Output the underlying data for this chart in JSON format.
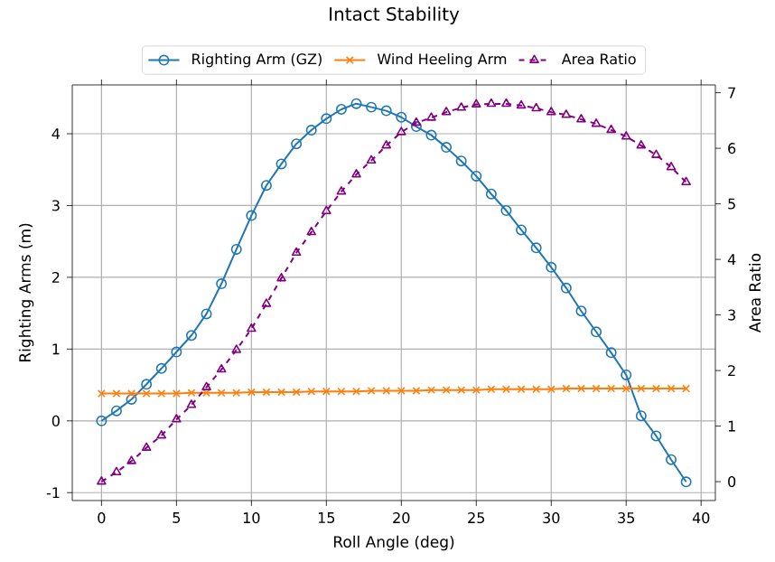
{
  "chart_data": {
    "type": "line",
    "title": "Intact Stability",
    "xlabel": "Roll Angle (deg)",
    "ylabel": "Righting Arms (m)",
    "y2label": "Area Ratio",
    "x": [
      0,
      1,
      2,
      3,
      4,
      5,
      6,
      7,
      8,
      9,
      10,
      11,
      12,
      13,
      14,
      15,
      16,
      17,
      18,
      19,
      20,
      21,
      22,
      23,
      24,
      25,
      26,
      27,
      28,
      29,
      30,
      31,
      32,
      33,
      34,
      35,
      36,
      37,
      38,
      39
    ],
    "series": [
      {
        "name": "Righting Arm (GZ)",
        "color": "#1f77b4",
        "marker": "circle",
        "line_style": "solid",
        "axis": "y",
        "values": [
          0,
          0.14,
          0.3,
          0.51,
          0.73,
          0.96,
          1.19,
          1.49,
          1.91,
          2.39,
          2.86,
          3.28,
          3.58,
          3.86,
          4.05,
          4.21,
          4.34,
          4.42,
          4.37,
          4.32,
          4.23,
          4.1,
          3.98,
          3.81,
          3.62,
          3.41,
          3.16,
          2.93,
          2.66,
          2.41,
          2.14,
          1.85,
          1.53,
          1.24,
          0.95,
          0.64,
          0.07,
          -0.21,
          -0.54,
          -0.85
        ]
      },
      {
        "name": "Wind Heeling Arm",
        "color": "#ff7f0e",
        "marker": "cross",
        "line_style": "solid",
        "axis": "y",
        "values": [
          0.38,
          0.38,
          0.38,
          0.38,
          0.38,
          0.38,
          0.39,
          0.39,
          0.39,
          0.39,
          0.4,
          0.4,
          0.4,
          0.4,
          0.41,
          0.41,
          0.41,
          0.41,
          0.42,
          0.42,
          0.42,
          0.42,
          0.43,
          0.43,
          0.43,
          0.43,
          0.44,
          0.44,
          0.44,
          0.44,
          0.44,
          0.45,
          0.45,
          0.45,
          0.45,
          0.45,
          0.45,
          0.45,
          0.45,
          0.45
        ]
      },
      {
        "name": "Area Ratio",
        "color": "#800080",
        "marker": "triangle",
        "line_style": "dashed",
        "axis": "y2",
        "values": [
          0,
          0.17,
          0.37,
          0.61,
          0.83,
          1.12,
          1.38,
          1.7,
          2.02,
          2.37,
          2.75,
          3.2,
          3.66,
          4.12,
          4.49,
          4.87,
          5.22,
          5.53,
          5.78,
          6.05,
          6.29,
          6.46,
          6.55,
          6.65,
          6.73,
          6.79,
          6.8,
          6.8,
          6.77,
          6.72,
          6.65,
          6.6,
          6.52,
          6.44,
          6.33,
          6.21,
          6.05,
          5.88,
          5.66,
          5.39
        ]
      }
    ],
    "xlim": [
      -1.95,
      40.95
    ],
    "ylim": [
      -1.11,
      4.68
    ],
    "y2lim": [
      -0.34,
      7.14
    ],
    "xticks": [
      0,
      5,
      10,
      15,
      20,
      25,
      30,
      35,
      40
    ],
    "yticks": [
      -1,
      0,
      1,
      2,
      3,
      4
    ],
    "y2ticks": [
      0,
      1,
      2,
      3,
      4,
      5,
      6,
      7
    ],
    "grid": true,
    "legend": "top"
  }
}
